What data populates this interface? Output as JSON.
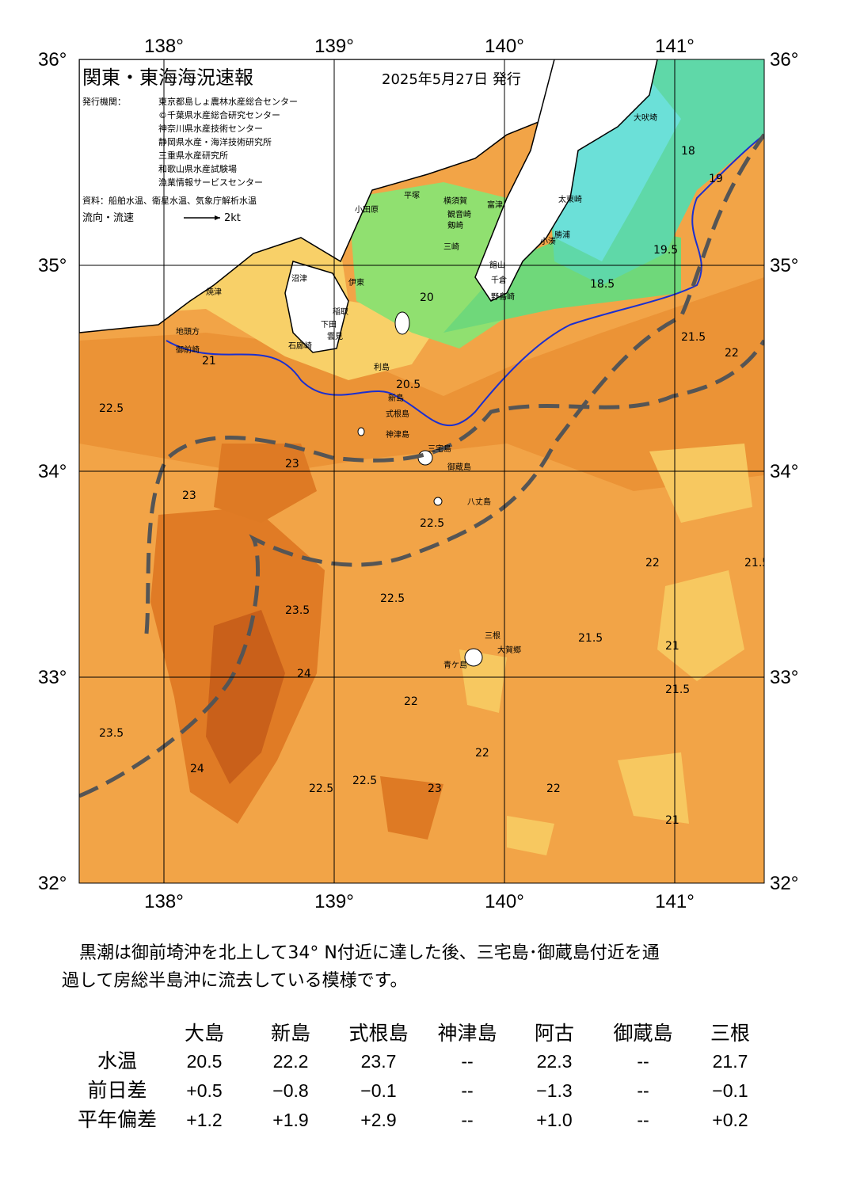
{
  "map": {
    "title": "関東・東海海況速報",
    "date": "2025年5月27日 発行",
    "issuer_label": "発行機関：",
    "issuers": [
      "東京都島しょ農林水産総合センター",
      "©千葉県水産総合研究センター",
      "神奈川県水産技術センター",
      "静岡県水産・海洋技術研究所",
      "三重県水産研究所",
      "和歌山県水産試験場",
      "漁業情報サービスセンター"
    ],
    "source": "資料：船舶水温、衛星水温、気象庁解析水温",
    "flow_legend": "流向・流速",
    "flow_unit": "2kt",
    "lon_ticks": [
      {
        "value": 138,
        "label": "138°"
      },
      {
        "value": 139,
        "label": "139°"
      },
      {
        "value": 140,
        "label": "140°"
      },
      {
        "value": 141,
        "label": "141°"
      }
    ],
    "lat_ticks": [
      {
        "value": 36,
        "label": "36°"
      },
      {
        "value": 35,
        "label": "35°"
      },
      {
        "value": 34,
        "label": "34°"
      },
      {
        "value": 33,
        "label": "33°"
      },
      {
        "value": 32,
        "label": "32°"
      }
    ],
    "places": [
      "大吠埼",
      "太東崎",
      "勝浦",
      "小湊",
      "館山",
      "千倉",
      "野島崎",
      "富津",
      "横須賀",
      "観音崎",
      "剱崎",
      "三崎",
      "平塚",
      "小田原",
      "沼津",
      "伊東",
      "稲取",
      "下田",
      "雲見",
      "石廊崎",
      "焼津",
      "地頭方",
      "御前崎",
      "利島",
      "新島",
      "式根島",
      "神津島",
      "三宅島",
      "御蔵島",
      "八丈島",
      "三根",
      "大賀郷",
      "青ケ島"
    ],
    "contours": [
      "18",
      "18.5",
      "19",
      "19.5",
      "20",
      "20.5",
      "21",
      "21.5",
      "22",
      "22.5",
      "23",
      "23.5",
      "24",
      "22.5",
      "22",
      "21.5",
      "23",
      "22.5",
      "21",
      "22",
      "23.5",
      "24",
      "22.5",
      "21.5",
      "22",
      "22.5",
      "23",
      "21",
      "22",
      "21.5"
    ]
  },
  "summary": "黒潮は御前埼沖を北上して34° N付近に達した後、三宅島･御蔵島付近を通過して房総半島沖に流去している模様です。",
  "table": {
    "columns": [
      "大島",
      "新島",
      "式根島",
      "神津島",
      "阿古",
      "御蔵島",
      "三根"
    ],
    "rows": [
      {
        "label": "水温",
        "cells": [
          "20.5",
          "22.2",
          "23.7",
          "--",
          "22.3",
          "--",
          "21.7"
        ]
      },
      {
        "label": "前日差",
        "cells": [
          "+0.5",
          "−0.8",
          "−0.1",
          "--",
          "−1.3",
          "--",
          "−0.1"
        ]
      },
      {
        "label": "平年偏差",
        "cells": [
          "+1.2",
          "+1.9",
          "+2.9",
          "--",
          "+1.0",
          "--",
          "+0.2"
        ]
      }
    ]
  }
}
